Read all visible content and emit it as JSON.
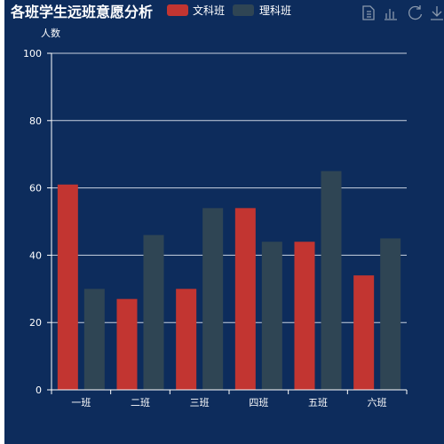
{
  "chart_data": {
    "type": "bar",
    "title": "各班学生远班意愿分析",
    "ylabel": "人数",
    "xlabel": "",
    "categories": [
      "一班",
      "二班",
      "三班",
      "四班",
      "五班",
      "六班"
    ],
    "series": [
      {
        "name": "文科班",
        "color": "#c23531",
        "values": [
          61,
          27,
          30,
          54,
          44,
          34
        ]
      },
      {
        "name": "理科班",
        "color": "#2f4554",
        "values": [
          30,
          46,
          54,
          44,
          65,
          45
        ]
      }
    ],
    "ylim": [
      0,
      100
    ],
    "yticks": [
      0,
      20,
      40,
      60,
      80,
      100
    ],
    "grid": true,
    "legend_position": "top-center"
  },
  "toolbox": {
    "icons": [
      "data-view-icon",
      "bar-chart-icon",
      "restore-icon",
      "save-image-icon"
    ]
  }
}
